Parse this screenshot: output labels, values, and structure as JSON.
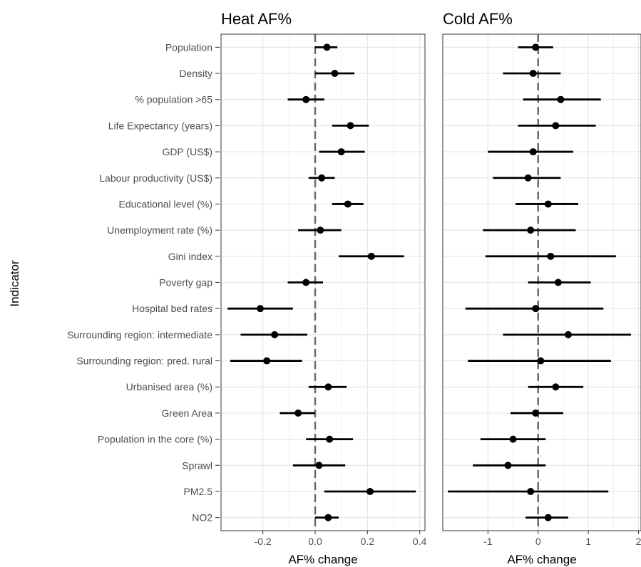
{
  "chart_data": {
    "type": "forest",
    "ylabel": "Indicator",
    "indicators": [
      "Population",
      "Density",
      "% population >65",
      "Life Expectancy (years)",
      "GDP (US$)",
      "Labour productivity (US$)",
      "Educational level (%)",
      "Unemployment rate (%)",
      "Gini index",
      "Poverty gap",
      "Hospital bed rates",
      "Surrounding region: intermediate",
      "Surrounding region: pred. rural",
      "Urbanised area (%)",
      "Green Area",
      "Population in the core (%)",
      "Sprawl",
      "PM2.5",
      "NO2"
    ],
    "panels": [
      {
        "title": "Heat AF%",
        "xlabel": "AF% change",
        "xlim": [
          -0.36,
          0.42
        ],
        "ticks": [
          -0.2,
          0.0,
          0.2,
          0.4
        ],
        "tick_labels": [
          "-0.2",
          "0.0",
          "0.2",
          "0.4"
        ],
        "reference_line": 0,
        "estimates": [
          0.045,
          0.075,
          -0.035,
          0.135,
          0.1,
          0.025,
          0.125,
          0.02,
          0.215,
          -0.035,
          -0.21,
          -0.155,
          -0.185,
          0.05,
          -0.065,
          0.055,
          0.015,
          0.21,
          0.05
        ],
        "lower": [
          0.0,
          0.0,
          -0.105,
          0.065,
          0.015,
          -0.025,
          0.065,
          -0.065,
          0.09,
          -0.105,
          -0.335,
          -0.285,
          -0.325,
          -0.025,
          -0.135,
          -0.035,
          -0.085,
          0.035,
          0.0
        ],
        "upper": [
          0.085,
          0.15,
          0.035,
          0.205,
          0.19,
          0.075,
          0.185,
          0.1,
          0.34,
          0.03,
          -0.085,
          -0.03,
          -0.05,
          0.12,
          0.0,
          0.145,
          0.115,
          0.385,
          0.09
        ]
      },
      {
        "title": "Cold AF%",
        "xlabel": "AF% change",
        "xlim": [
          -1.9,
          2.05
        ],
        "ticks": [
          -1,
          0,
          1,
          2
        ],
        "tick_labels": [
          "-1",
          "0",
          "1",
          "2"
        ],
        "reference_line": 0,
        "estimates": [
          -0.05,
          -0.1,
          0.45,
          0.35,
          -0.1,
          -0.2,
          0.2,
          -0.15,
          0.25,
          0.4,
          -0.05,
          0.6,
          0.05,
          0.35,
          -0.05,
          -0.5,
          -0.6,
          -0.15,
          0.2
        ],
        "lower": [
          -0.4,
          -0.7,
          -0.3,
          -0.4,
          -1.0,
          -0.9,
          -0.45,
          -1.1,
          -1.05,
          -0.2,
          -1.45,
          -0.7,
          -1.4,
          -0.2,
          -0.55,
          -1.15,
          -1.3,
          -1.8,
          -0.25
        ],
        "upper": [
          0.3,
          0.45,
          1.25,
          1.15,
          0.7,
          0.45,
          0.8,
          0.75,
          1.55,
          1.05,
          1.3,
          1.85,
          1.45,
          0.9,
          0.5,
          0.15,
          0.15,
          1.4,
          0.6
        ]
      }
    ],
    "grid": true
  }
}
